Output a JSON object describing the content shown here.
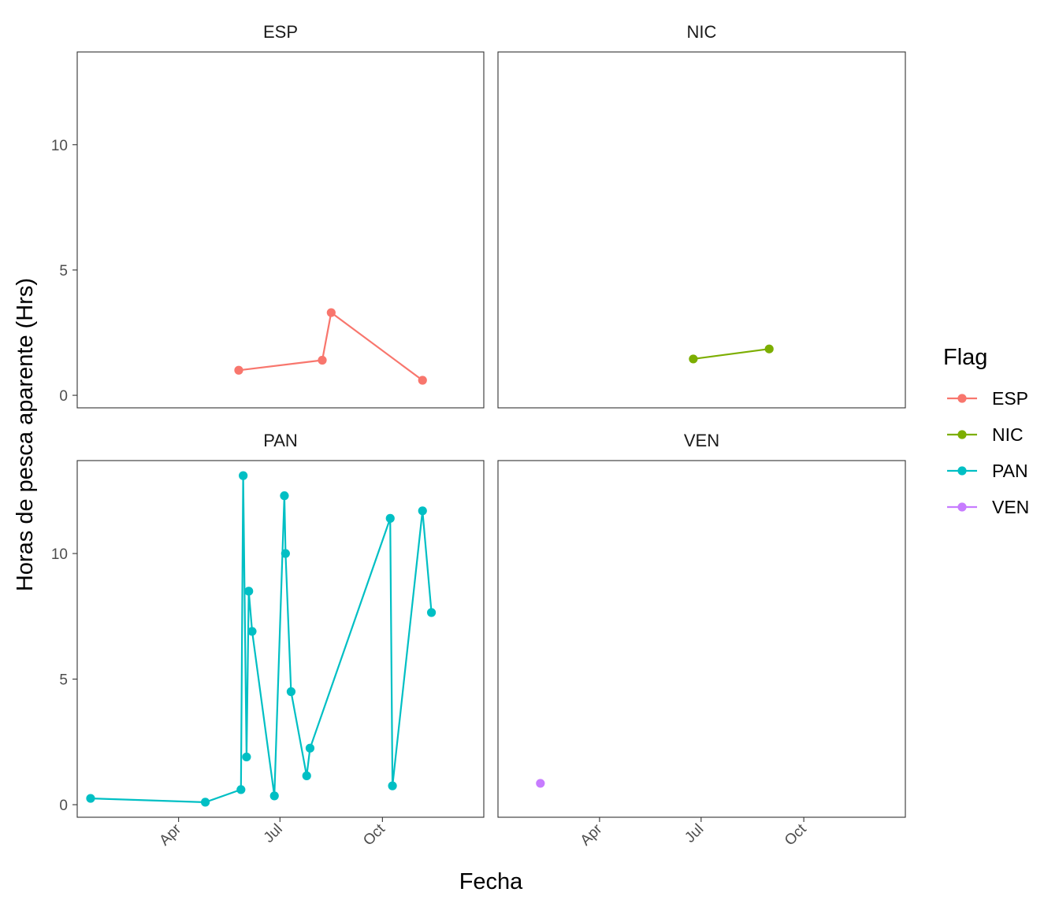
{
  "chart_data": {
    "type": "line",
    "layout": "facet_wrap",
    "xlabel": "Fecha",
    "ylabel": "Horas de pesca aparente (Hrs)",
    "ylim": [
      -0.5,
      13.7
    ],
    "yticks": [
      0,
      5,
      10
    ],
    "xlim": [
      "2020-01-01",
      "2020-12-31"
    ],
    "xticks": [
      {
        "date": "2020-04-01",
        "label": "Apr"
      },
      {
        "date": "2020-07-01",
        "label": "Jul"
      },
      {
        "date": "2020-10-01",
        "label": "Oct"
      }
    ],
    "legend": {
      "title": "Flag",
      "position": "right"
    },
    "grid": false,
    "series": [
      {
        "name": "ESP",
        "color": "#F8766D",
        "points": [
          {
            "x": "2020-05-25",
            "y": 1.0
          },
          {
            "x": "2020-08-08",
            "y": 1.4
          },
          {
            "x": "2020-08-16",
            "y": 3.3
          },
          {
            "x": "2020-11-06",
            "y": 0.6
          }
        ]
      },
      {
        "name": "NIC",
        "color": "#7CAE00",
        "points": [
          {
            "x": "2020-06-24",
            "y": 1.45
          },
          {
            "x": "2020-08-31",
            "y": 1.85
          }
        ]
      },
      {
        "name": "PAN",
        "color": "#00BFC4",
        "points": [
          {
            "x": "2020-01-13",
            "y": 0.25
          },
          {
            "x": "2020-04-25",
            "y": 0.1
          },
          {
            "x": "2020-05-27",
            "y": 0.6
          },
          {
            "x": "2020-05-29",
            "y": 13.1
          },
          {
            "x": "2020-06-01",
            "y": 1.9
          },
          {
            "x": "2020-06-03",
            "y": 8.5
          },
          {
            "x": "2020-06-06",
            "y": 6.9
          },
          {
            "x": "2020-06-26",
            "y": 0.35
          },
          {
            "x": "2020-07-05",
            "y": 12.3
          },
          {
            "x": "2020-07-06",
            "y": 10.0
          },
          {
            "x": "2020-07-11",
            "y": 4.5
          },
          {
            "x": "2020-07-25",
            "y": 1.15
          },
          {
            "x": "2020-07-28",
            "y": 2.25
          },
          {
            "x": "2020-10-08",
            "y": 11.4
          },
          {
            "x": "2020-10-10",
            "y": 0.75
          },
          {
            "x": "2020-11-06",
            "y": 11.7
          },
          {
            "x": "2020-11-14",
            "y": 7.65
          }
        ]
      },
      {
        "name": "VEN",
        "color": "#C77CFF",
        "points": [
          {
            "x": "2020-02-08",
            "y": 0.85
          }
        ]
      }
    ]
  }
}
